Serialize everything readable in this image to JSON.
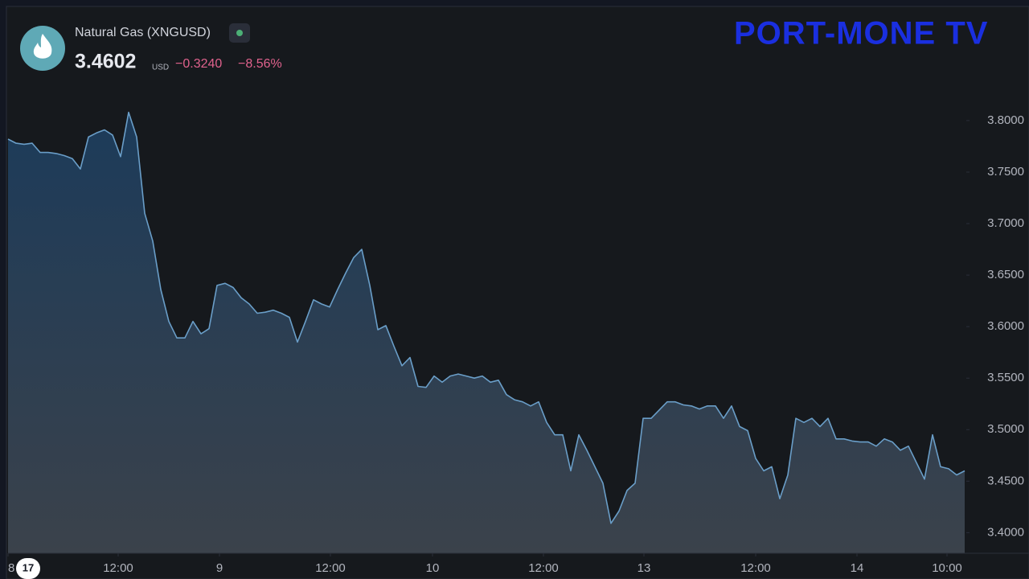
{
  "header": {
    "instrument": "Natural Gas (XNGUSD)",
    "price": "3.4602",
    "currency": "USD",
    "change": "−0.3240",
    "change_percent": "−8.56%"
  },
  "logo": "PORT-MONE TV",
  "chart_data": {
    "type": "area",
    "series": [
      {
        "color": "#6a9ec8",
        "values": [
          3.782,
          3.778,
          3.777,
          3.778,
          3.769,
          3.769,
          3.768,
          3.766,
          3.763,
          3.753,
          3.784,
          3.788,
          3.791,
          3.786,
          3.765,
          3.808,
          3.784,
          3.71,
          3.683,
          3.636,
          3.605,
          3.589,
          3.589,
          3.605,
          3.593,
          3.598,
          3.64,
          3.642,
          3.638,
          3.628,
          3.622,
          3.613,
          3.614,
          3.616,
          3.613,
          3.609,
          3.585,
          3.605,
          3.626,
          3.622,
          3.619,
          3.636,
          3.652,
          3.667,
          3.675,
          3.64,
          3.597,
          3.601,
          3.581,
          3.562,
          3.57,
          3.542,
          3.541,
          3.552,
          3.546,
          3.552,
          3.554,
          3.552,
          3.55,
          3.552,
          3.546,
          3.548,
          3.534,
          3.529,
          3.527,
          3.523,
          3.527,
          3.507,
          3.495,
          3.495,
          3.46,
          3.495,
          3.48,
          3.464,
          3.448,
          3.409,
          3.421,
          3.441,
          3.448,
          3.511,
          3.511,
          3.519,
          3.527,
          3.527,
          3.524,
          3.523,
          3.52,
          3.523,
          3.523,
          3.511,
          3.523,
          3.503,
          3.499,
          3.472,
          3.46,
          3.464,
          3.433,
          3.456,
          3.511,
          3.507,
          3.511,
          3.503,
          3.511,
          3.491,
          3.491,
          3.489,
          3.488,
          3.488,
          3.484,
          3.491,
          3.488,
          3.48,
          3.484,
          3.468,
          3.452,
          3.495,
          3.464,
          3.462,
          3.456,
          3.46
        ]
      }
    ],
    "xlim": [
      0,
      119
    ],
    "xticks": [
      {
        "value": 0,
        "label": "8"
      },
      {
        "value": 13.7,
        "label": "12:00"
      },
      {
        "value": 26.3,
        "label": "9"
      },
      {
        "value": 40.1,
        "label": "12:00"
      },
      {
        "value": 52.8,
        "label": "10"
      },
      {
        "value": 66.6,
        "label": "12:00"
      },
      {
        "value": 79.1,
        "label": "13"
      },
      {
        "value": 93,
        "label": "12:00"
      },
      {
        "value": 105.6,
        "label": "14"
      },
      {
        "value": 116.8,
        "label": "10:00"
      }
    ],
    "ylim": [
      3.38,
      3.91
    ],
    "yticks": [
      {
        "value": 3.4,
        "label": "3.4000"
      },
      {
        "value": 3.45,
        "label": "3.4500"
      },
      {
        "value": 3.5,
        "label": "3.5000"
      },
      {
        "value": 3.55,
        "label": "3.5500"
      },
      {
        "value": 3.6,
        "label": "3.6000"
      },
      {
        "value": 3.65,
        "label": "3.6500"
      },
      {
        "value": 3.7,
        "label": "3.7000"
      },
      {
        "value": 3.75,
        "label": "3.7500"
      },
      {
        "value": 3.8,
        "label": "3.8000"
      }
    ]
  }
}
